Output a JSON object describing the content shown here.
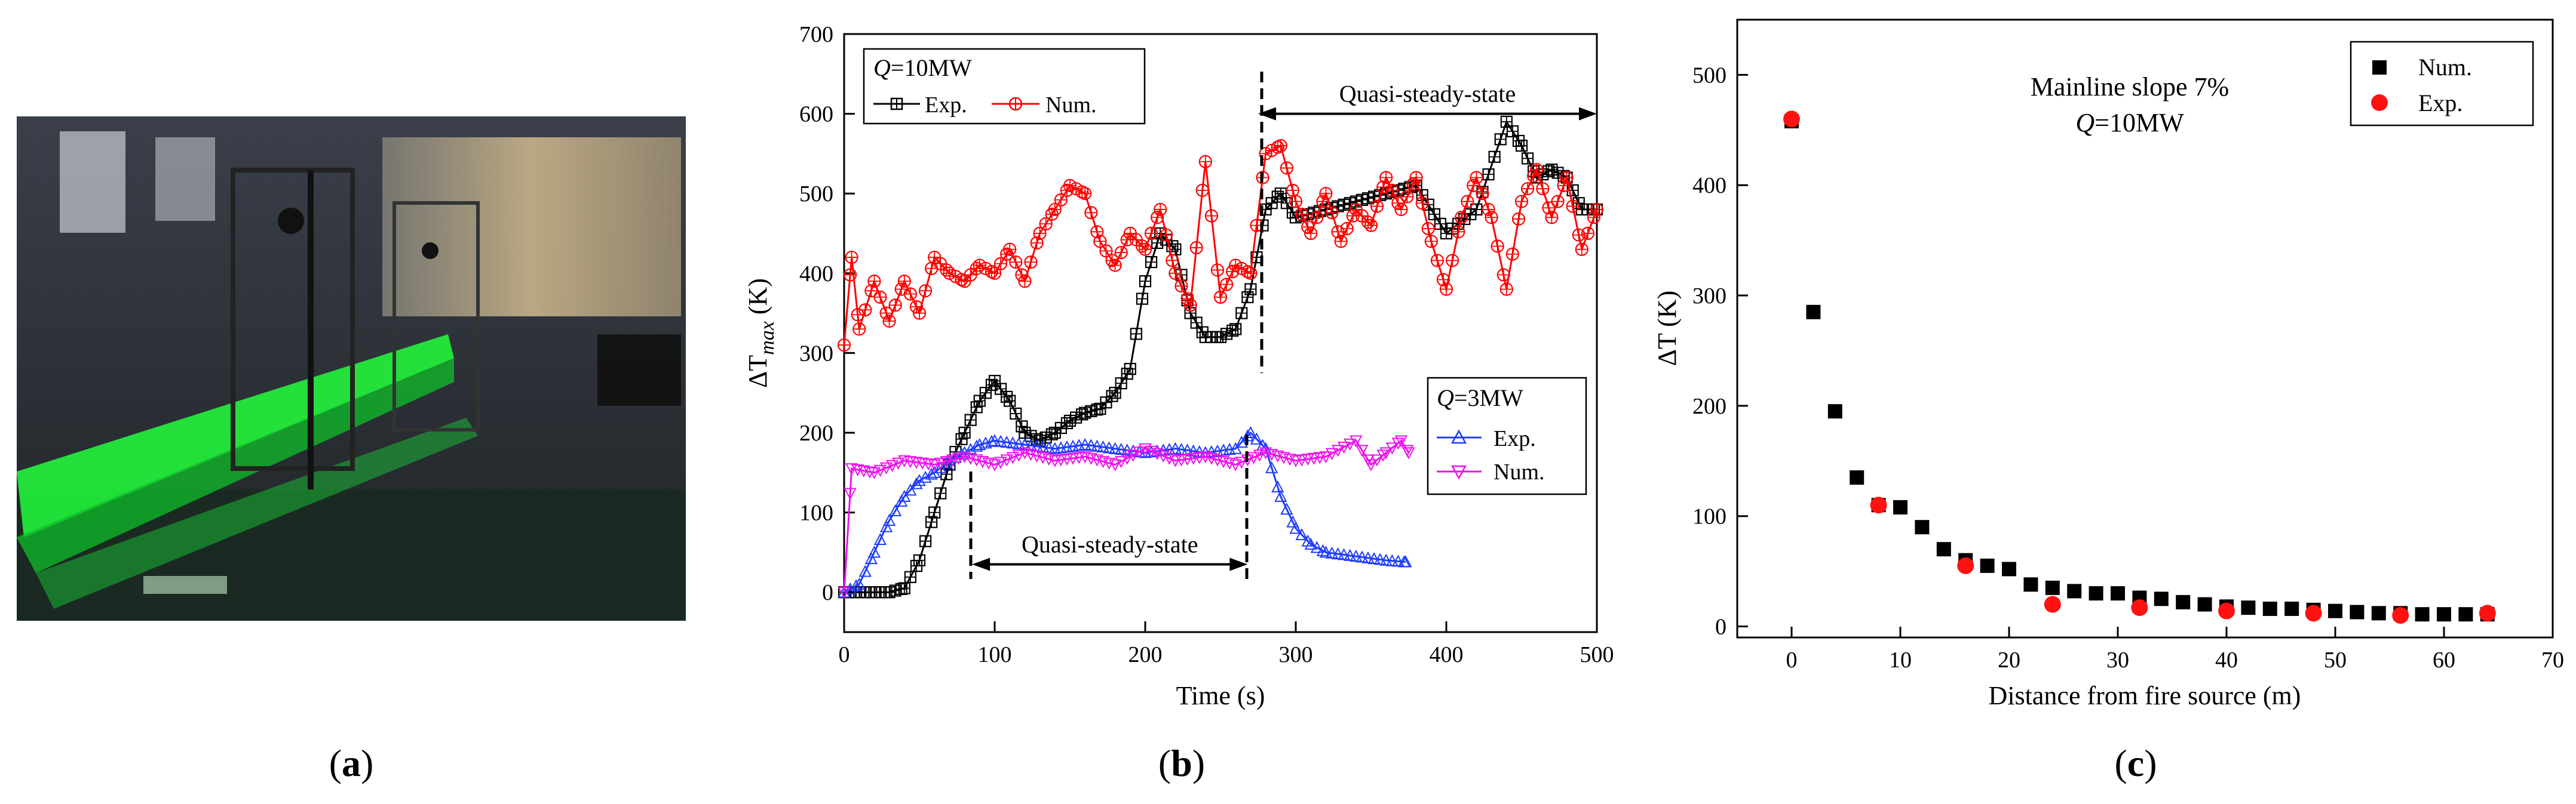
{
  "panels": {
    "a": {
      "label": "(a)",
      "letter": "a",
      "photo_alt": "photo-lab-tunnel-model-green-light"
    },
    "b": {
      "label": "(b)",
      "letter": "b"
    },
    "c": {
      "label": "(c)",
      "letter": "c"
    }
  },
  "colors": {
    "exp_10mw": "#000000",
    "num_10mw": "#ff0000",
    "exp_3mw": "#1f3cff",
    "num_3mw": "#ee11ee",
    "num_c": "#000000",
    "exp_c": "#ff1111"
  },
  "chart_data": [
    {
      "id": "b",
      "type": "line",
      "title": "",
      "xlabel": "Time (s)",
      "ylabel_main": "ΔT",
      "ylabel_sub": "max",
      "ylabel_unit": " (K)",
      "xlim": [
        0,
        500
      ],
      "ylim": [
        -50,
        700
      ],
      "xticks": [
        0,
        100,
        200,
        300,
        400,
        500
      ],
      "yticks": [
        0,
        100,
        200,
        300,
        400,
        500,
        600,
        700
      ],
      "legend_10": {
        "title_italic": "Q",
        "title_rest": "=10MW",
        "exp": "Exp.",
        "num": "Num."
      },
      "legend_3": {
        "title_italic": "Q",
        "title_rest": "=3MW",
        "exp": "Exp.",
        "num": "Num."
      },
      "annotation_top": "Quasi-steady-state",
      "annotation_bottom": "Quasi-steady-state",
      "annotation_top_range": [
        275,
        500
      ],
      "annotation_bottom_range": [
        85,
        268
      ],
      "annotation_top_y": 600,
      "annotation_bottom_y": 35,
      "series": [
        {
          "name": "Exp. Q=10MW",
          "marker": "square-cross",
          "color": "exp_10mw",
          "points": [
            [
              0,
              0
            ],
            [
              10,
              0
            ],
            [
              20,
              0
            ],
            [
              30,
              0
            ],
            [
              40,
              5
            ],
            [
              50,
              40
            ],
            [
              60,
              100
            ],
            [
              70,
              160
            ],
            [
              80,
              200
            ],
            [
              90,
              240
            ],
            [
              100,
              265
            ],
            [
              110,
              240
            ],
            [
              120,
              200
            ],
            [
              130,
              190
            ],
            [
              140,
              200
            ],
            [
              150,
              215
            ],
            [
              160,
              225
            ],
            [
              170,
              230
            ],
            [
              180,
              250
            ],
            [
              190,
              280
            ],
            [
              200,
              390
            ],
            [
              210,
              450
            ],
            [
              220,
              430
            ],
            [
              230,
              350
            ],
            [
              240,
              320
            ],
            [
              250,
              320
            ],
            [
              260,
              330
            ],
            [
              270,
              380
            ],
            [
              280,
              480
            ],
            [
              290,
              500
            ],
            [
              300,
              470
            ],
            [
              320,
              480
            ],
            [
              340,
              490
            ],
            [
              360,
              500
            ],
            [
              380,
              510
            ],
            [
              400,
              450
            ],
            [
              420,
              480
            ],
            [
              440,
              590
            ],
            [
              450,
              560
            ],
            [
              460,
              520
            ],
            [
              470,
              530
            ],
            [
              480,
              520
            ],
            [
              490,
              480
            ],
            [
              500,
              480
            ]
          ]
        },
        {
          "name": "Num. Q=10MW",
          "marker": "circle-cross",
          "color": "num_10mw",
          "points": [
            [
              0,
              310
            ],
            [
              5,
              420
            ],
            [
              10,
              330
            ],
            [
              20,
              390
            ],
            [
              30,
              340
            ],
            [
              40,
              390
            ],
            [
              50,
              350
            ],
            [
              60,
              420
            ],
            [
              70,
              400
            ],
            [
              80,
              390
            ],
            [
              90,
              410
            ],
            [
              100,
              400
            ],
            [
              110,
              430
            ],
            [
              120,
              390
            ],
            [
              130,
              450
            ],
            [
              140,
              480
            ],
            [
              150,
              510
            ],
            [
              160,
              500
            ],
            [
              170,
              440
            ],
            [
              180,
              410
            ],
            [
              190,
              450
            ],
            [
              200,
              430
            ],
            [
              210,
              480
            ],
            [
              220,
              400
            ],
            [
              230,
              360
            ],
            [
              240,
              540
            ],
            [
              250,
              370
            ],
            [
              260,
              410
            ],
            [
              270,
              400
            ],
            [
              280,
              550
            ],
            [
              290,
              560
            ],
            [
              300,
              490
            ],
            [
              310,
              450
            ],
            [
              320,
              500
            ],
            [
              330,
              440
            ],
            [
              340,
              480
            ],
            [
              350,
              460
            ],
            [
              360,
              520
            ],
            [
              370,
              480
            ],
            [
              380,
              520
            ],
            [
              390,
              440
            ],
            [
              400,
              380
            ],
            [
              410,
              470
            ],
            [
              420,
              520
            ],
            [
              430,
              470
            ],
            [
              440,
              380
            ],
            [
              450,
              490
            ],
            [
              460,
              530
            ],
            [
              470,
              470
            ],
            [
              480,
              520
            ],
            [
              490,
              430
            ],
            [
              500,
              480
            ]
          ]
        },
        {
          "name": "Exp. Q=3MW",
          "marker": "triangle-up",
          "color": "exp_3mw",
          "points": [
            [
              0,
              0
            ],
            [
              10,
              10
            ],
            [
              20,
              50
            ],
            [
              30,
              90
            ],
            [
              40,
              120
            ],
            [
              50,
              140
            ],
            [
              60,
              150
            ],
            [
              70,
              165
            ],
            [
              80,
              175
            ],
            [
              90,
              185
            ],
            [
              100,
              190
            ],
            [
              120,
              185
            ],
            [
              140,
              180
            ],
            [
              160,
              185
            ],
            [
              180,
              180
            ],
            [
              200,
              175
            ],
            [
              220,
              180
            ],
            [
              240,
              175
            ],
            [
              260,
              180
            ],
            [
              270,
              200
            ],
            [
              280,
              180
            ],
            [
              290,
              120
            ],
            [
              300,
              80
            ],
            [
              310,
              60
            ],
            [
              320,
              50
            ],
            [
              340,
              45
            ],
            [
              360,
              40
            ],
            [
              373,
              38
            ]
          ]
        },
        {
          "name": "Num. Q=3MW",
          "marker": "triangle-down",
          "color": "num_3mw",
          "points": [
            [
              0,
              0
            ],
            [
              5,
              155
            ],
            [
              20,
              150
            ],
            [
              40,
              165
            ],
            [
              60,
              160
            ],
            [
              80,
              170
            ],
            [
              100,
              160
            ],
            [
              120,
              175
            ],
            [
              140,
              165
            ],
            [
              160,
              170
            ],
            [
              180,
              160
            ],
            [
              200,
              180
            ],
            [
              220,
              165
            ],
            [
              240,
              170
            ],
            [
              260,
              160
            ],
            [
              280,
              175
            ],
            [
              300,
              165
            ],
            [
              320,
              170
            ],
            [
              340,
              190
            ],
            [
              350,
              160
            ],
            [
              360,
              175
            ],
            [
              370,
              190
            ],
            [
              375,
              175
            ]
          ]
        }
      ]
    },
    {
      "id": "c",
      "type": "scatter",
      "title": "",
      "xlabel": "Distance from fire source (m)",
      "ylabel_main": "ΔT",
      "ylabel_unit": " (K)",
      "xlim": [
        -5,
        70
      ],
      "ylim": [
        -10,
        550
      ],
      "xticks": [
        0,
        10,
        20,
        30,
        40,
        50,
        60,
        70
      ],
      "yticks": [
        0,
        100,
        200,
        300,
        400,
        500
      ],
      "annotation_line1": "Mainline slope 7%",
      "annotation_line2_italic": "Q",
      "annotation_line2_rest": "=10MW",
      "legend": {
        "num": "Num.",
        "exp": "Exp."
      },
      "series": [
        {
          "name": "Num.",
          "marker": "square",
          "color": "num_c",
          "x": [
            0,
            2,
            4,
            6,
            8,
            10,
            12,
            14,
            16,
            18,
            20,
            22,
            24,
            26,
            28,
            30,
            32,
            34,
            36,
            38,
            40,
            42,
            44,
            46,
            48,
            50,
            52,
            54,
            56,
            58,
            60,
            62,
            64
          ],
          "y": [
            458,
            285,
            195,
            135,
            110,
            108,
            90,
            70,
            60,
            55,
            52,
            38,
            35,
            32,
            30,
            30,
            26,
            25,
            22,
            20,
            18,
            17,
            16,
            16,
            15,
            14,
            13,
            12,
            12,
            11,
            11,
            11,
            11
          ]
        },
        {
          "name": "Exp.",
          "marker": "circle",
          "color": "exp_c",
          "x": [
            0,
            8,
            16,
            24,
            32,
            40,
            48,
            56,
            64
          ],
          "y": [
            460,
            110,
            55,
            20,
            17,
            14,
            12,
            10,
            12
          ]
        }
      ]
    }
  ]
}
